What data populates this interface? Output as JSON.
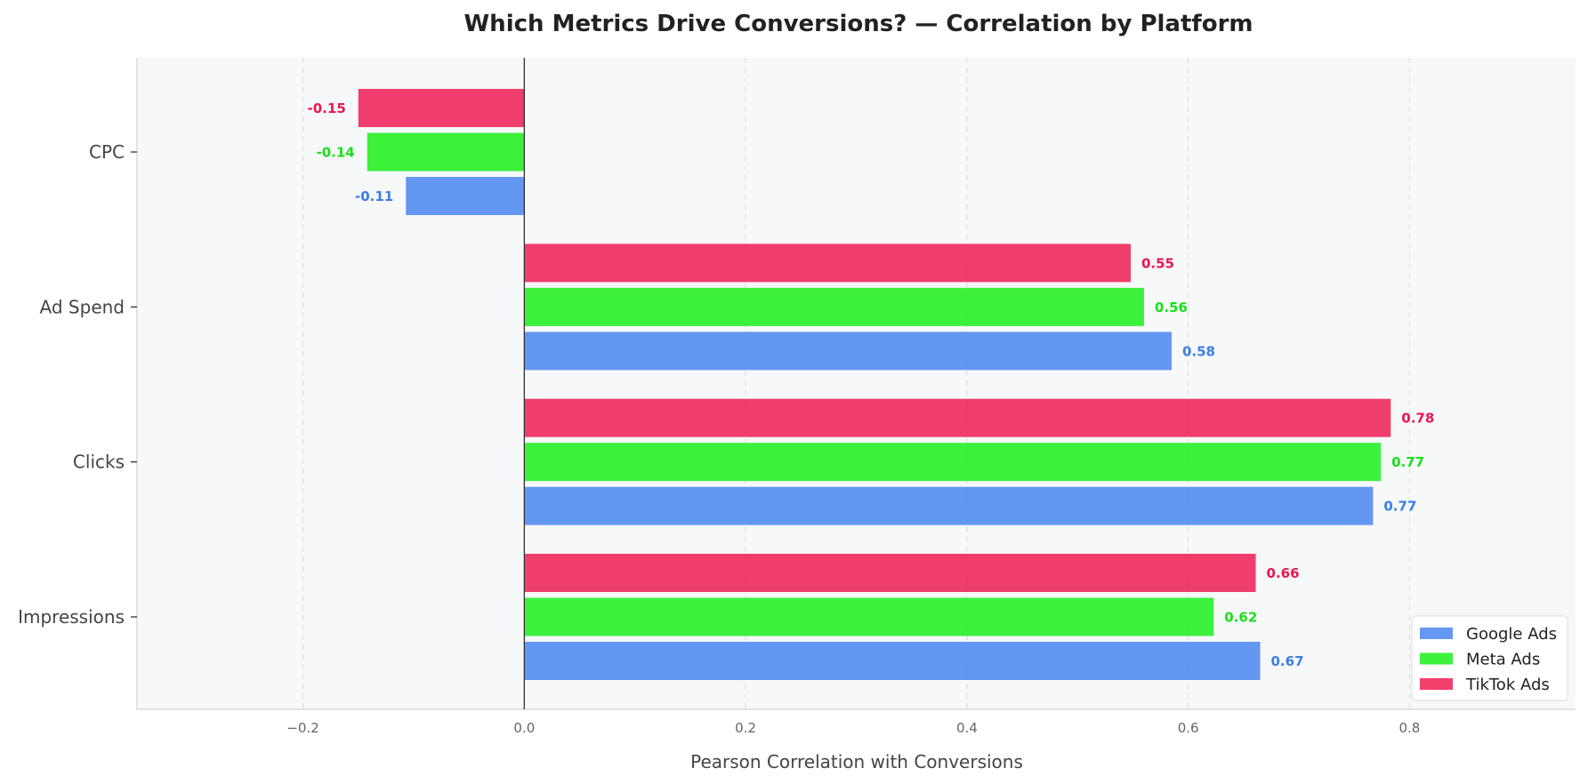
{
  "chart_data": {
    "type": "bar",
    "orientation": "horizontal",
    "title": "Which Metrics Drive Conversions? — Correlation by Platform",
    "xlabel": "Pearson Correlation with Conversions",
    "ylabel": "",
    "categories": [
      "Impressions",
      "Clicks",
      "Ad Spend",
      "CPC"
    ],
    "series": [
      {
        "name": "Google Ads",
        "color": "#4A86F0",
        "values": [
          0.665,
          0.767,
          0.585,
          -0.107
        ],
        "labels": [
          "0.67",
          "0.77",
          "0.58",
          "-0.11"
        ]
      },
      {
        "name": "Meta Ads",
        "color": "#1AF01A",
        "values": [
          0.623,
          0.774,
          0.56,
          -0.142
        ],
        "labels": [
          "0.62",
          "0.77",
          "0.56",
          "-0.14"
        ]
      },
      {
        "name": "TikTok Ads",
        "color": "#EE1D52",
        "values": [
          0.661,
          0.783,
          0.548,
          -0.15
        ],
        "labels": [
          "0.66",
          "0.78",
          "0.55",
          "-0.15"
        ]
      }
    ],
    "xlim": [
      -0.35,
      0.95
    ],
    "xticks": [
      -0.2,
      0.0,
      0.2,
      0.4,
      0.6,
      0.8
    ],
    "xtick_labels": [
      "−0.2",
      "0.0",
      "0.2",
      "0.4",
      "0.6",
      "0.8"
    ],
    "grid": "x-dashed",
    "legend_position": "bottom-right",
    "bar_alpha": 0.85,
    "label_colors": [
      "#3B7DE8",
      "#1AE01A",
      "#E8174F"
    ],
    "background": "#F7F8FA"
  }
}
